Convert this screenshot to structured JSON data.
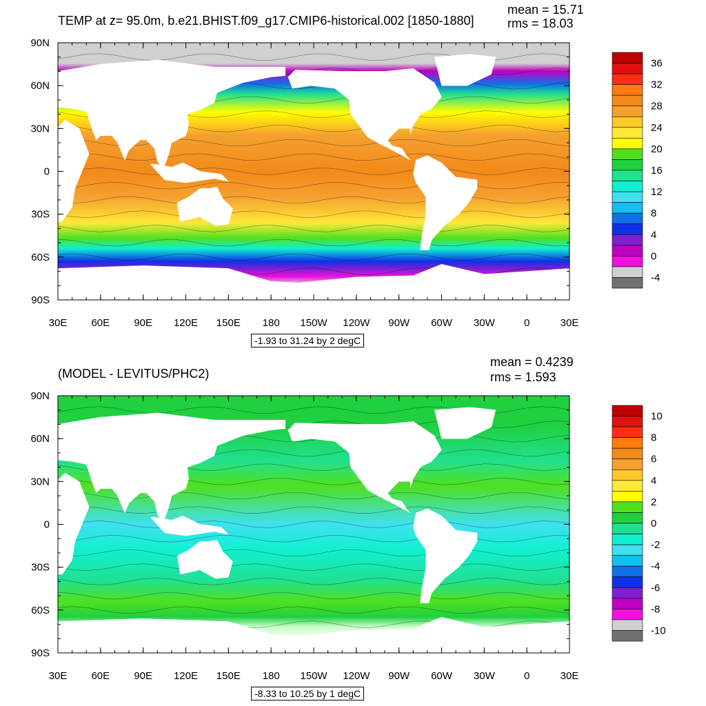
{
  "colors": {
    "ocean_warm": "#f2a03c",
    "ocean_mid": "#3cd24a",
    "ocean_cool": "#38c8e8",
    "ice": "#d0d0d0",
    "land": "#ffffff"
  },
  "chart_data": [
    {
      "type": "heatmap",
      "title": "TEMP at z=  95.0m, b.e21.BHIST.f09_g17.CMIP6-historical.002 [1850-1880]",
      "mean_label": "mean = 15.71",
      "rms_label": "rms = 18.03",
      "mean": 15.71,
      "rms": 18.03,
      "range_label": "-1.93 to 31.24 by 2 degC",
      "data_min": -1.93,
      "data_max": 31.24,
      "contour_interval": 2,
      "units": "degC",
      "x_ticks": [
        "30E",
        "60E",
        "90E",
        "120E",
        "150E",
        "180",
        "150W",
        "120W",
        "90W",
        "60W",
        "30W",
        "0",
        "30E"
      ],
      "y_ticks": [
        "90N",
        "60N",
        "30N",
        "0",
        "30S",
        "60S",
        "90S"
      ],
      "xlim": [
        30,
        390
      ],
      "ylim": [
        -90,
        90
      ],
      "colorbar": {
        "levels": [
          36,
          34,
          32,
          30,
          28,
          26,
          24,
          22,
          20,
          18,
          16,
          14,
          12,
          10,
          8,
          6,
          4,
          2,
          0,
          -2,
          -4
        ],
        "labels": [
          "36",
          "32",
          "28",
          "24",
          "20",
          "16",
          "12",
          "8",
          "4",
          "0",
          "-4"
        ],
        "colors": [
          "#c00000",
          "#e01010",
          "#ff2e10",
          "#ff7a10",
          "#f28a1a",
          "#f5a030",
          "#fbc828",
          "#ffe838",
          "#ffff00",
          "#50e020",
          "#20d040",
          "#20e090",
          "#10f0d0",
          "#40e0f0",
          "#10c0f0",
          "#1070e8",
          "#1030e8",
          "#8020d0",
          "#c000c0",
          "#f010e0",
          "#d0d0d0",
          "#707070"
        ]
      }
    },
    {
      "type": "heatmap",
      "title": "(MODEL - LEVITUS/PHC2)",
      "mean_label": "mean = 0.4239",
      "rms_label": "rms = 1.593",
      "mean": 0.4239,
      "rms": 1.593,
      "range_label": "-8.33 to 10.25 by 1 degC",
      "data_min": -8.33,
      "data_max": 10.25,
      "contour_interval": 1,
      "units": "degC",
      "x_ticks": [
        "30E",
        "60E",
        "90E",
        "120E",
        "150E",
        "180",
        "150W",
        "120W",
        "90W",
        "60W",
        "30W",
        "0",
        "30E"
      ],
      "y_ticks": [
        "90N",
        "60N",
        "30N",
        "0",
        "30S",
        "60S",
        "90S"
      ],
      "xlim": [
        30,
        390
      ],
      "ylim": [
        -90,
        90
      ],
      "colorbar": {
        "levels": [
          10,
          9,
          8,
          7,
          6,
          5,
          4,
          3,
          2,
          1,
          0,
          -1,
          -2,
          -3,
          -4,
          -5,
          -6,
          -7,
          -8,
          -9,
          -10
        ],
        "labels": [
          "10",
          "8",
          "6",
          "4",
          "2",
          "0",
          "-2",
          "-4",
          "-6",
          "-8",
          "-10"
        ],
        "colors": [
          "#c00000",
          "#e01010",
          "#ff2e10",
          "#ff7a10",
          "#f28a1a",
          "#f5a030",
          "#fbc828",
          "#ffe838",
          "#ffff00",
          "#50e020",
          "#20d040",
          "#20e090",
          "#10f0d0",
          "#40e0f0",
          "#10c0f0",
          "#1070e8",
          "#1030e8",
          "#8020d0",
          "#c000c0",
          "#f010e0",
          "#d0d0d0",
          "#707070"
        ]
      }
    }
  ]
}
